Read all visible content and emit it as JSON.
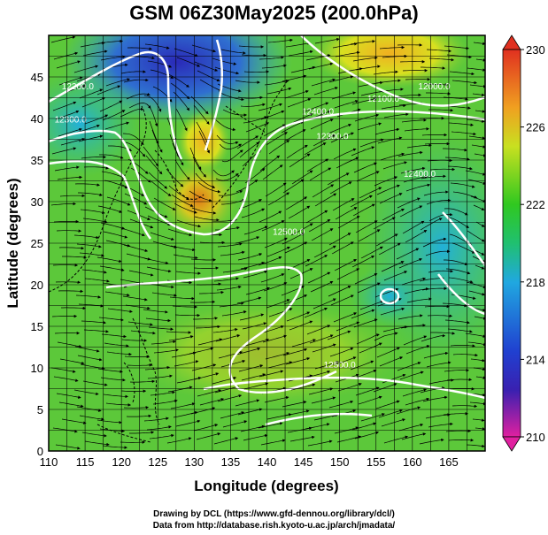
{
  "title": "GSM 06Z30May2025 (200.0hPa)",
  "credits": {
    "line1": "Drawing by DCL (https://www.gfd-dennou.org/library/dcl/)",
    "line2": "Data from http://database.rish.kyoto-u.ac.jp/arch/jmadata/"
  },
  "chart_data": {
    "type": "heatmap",
    "xlabel": "Longitude (degrees)",
    "ylabel": "Latitude (degrees)",
    "xlim": [
      110,
      170
    ],
    "ylim": [
      0,
      50
    ],
    "xticks": [
      110,
      115,
      120,
      125,
      130,
      135,
      140,
      145,
      150,
      155,
      160,
      165
    ],
    "yticks": [
      0,
      5,
      10,
      15,
      20,
      25,
      30,
      35,
      40,
      45
    ],
    "grid": true,
    "colorbar": {
      "ticks": [
        210,
        214,
        218,
        222,
        226,
        230
      ],
      "range": [
        210,
        230
      ],
      "colors": [
        "#e020a0",
        "#2020c0",
        "#20a0e0",
        "#20c020",
        "#d0e020",
        "#f08020",
        "#e03020"
      ]
    },
    "contour_labels": [
      {
        "text": "12200.0",
        "lon": 114,
        "lat": 43.5
      },
      {
        "text": "12300.0",
        "lon": 113,
        "lat": 39.5
      },
      {
        "text": "12300.0",
        "lon": 149,
        "lat": 37.5
      },
      {
        "text": "12400.0",
        "lon": 147,
        "lat": 40.5
      },
      {
        "text": "12100.0",
        "lon": 156,
        "lat": 42
      },
      {
        "text": "12000.0",
        "lon": 163,
        "lat": 43.5
      },
      {
        "text": "12400.0",
        "lon": 161,
        "lat": 33
      },
      {
        "text": "12500.0",
        "lon": 143,
        "lat": 26
      },
      {
        "text": "12500.0",
        "lon": 150,
        "lat": 10
      }
    ]
  }
}
